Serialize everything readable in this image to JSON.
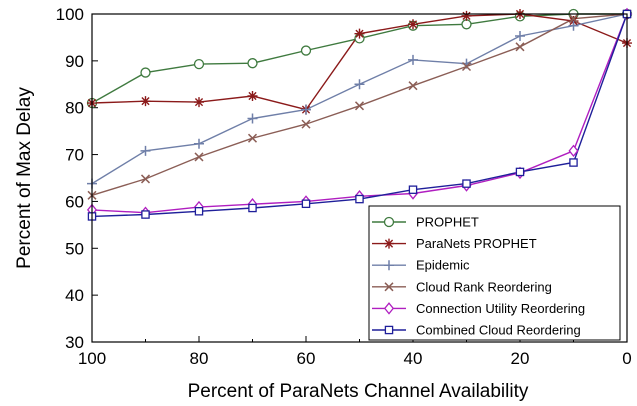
{
  "chart_data": {
    "type": "line",
    "xlabel": "Percent of ParaNets Channel Availability",
    "ylabel": "Percent of Max Delay",
    "x": [
      100,
      90,
      80,
      70,
      60,
      50,
      40,
      30,
      20,
      10,
      0
    ],
    "xlim": [
      100,
      0
    ],
    "ylim": [
      30,
      100
    ],
    "xticks": [
      100,
      80,
      60,
      40,
      20,
      0
    ],
    "yticks": [
      30,
      40,
      50,
      60,
      70,
      80,
      90,
      100
    ],
    "grid": false,
    "legend_position": "bottom-right",
    "series": [
      {
        "name": "PROPHET",
        "color": "#3f7a3f",
        "marker": "circle",
        "values": [
          81,
          87.5,
          89.3,
          89.5,
          92.2,
          94.8,
          97.5,
          97.8,
          99.5,
          100,
          100
        ]
      },
      {
        "name": "ParaNets PROPHET",
        "color": "#8b1a1a",
        "marker": "star",
        "values": [
          81,
          81.4,
          81.2,
          82.5,
          79.6,
          95.8,
          97.8,
          99.6,
          100,
          98.5,
          93.8
        ]
      },
      {
        "name": "Epidemic",
        "color": "#6f7fa8",
        "marker": "plus",
        "values": [
          63.8,
          70.8,
          72.3,
          77.7,
          79.6,
          85,
          90.2,
          89.4,
          95.3,
          97.5,
          100
        ]
      },
      {
        "name": "Cloud Rank Reordering",
        "color": "#8b5e56",
        "marker": "x",
        "values": [
          61.3,
          64.8,
          69.5,
          73.5,
          76.5,
          80.4,
          84.7,
          88.8,
          93,
          99,
          100
        ]
      },
      {
        "name": "Connection Utility Reordering",
        "color": "#b01ec0",
        "marker": "diamond",
        "values": [
          58.2,
          57.6,
          58.8,
          59.4,
          60,
          61.1,
          61.7,
          63.4,
          66.1,
          70.8,
          100
        ]
      },
      {
        "name": "Combined Cloud Reordering",
        "color": "#1f1f9a",
        "marker": "square",
        "values": [
          56.8,
          57.2,
          57.9,
          58.6,
          59.5,
          60.5,
          62.5,
          63.8,
          66.3,
          68.3,
          100
        ]
      }
    ]
  }
}
